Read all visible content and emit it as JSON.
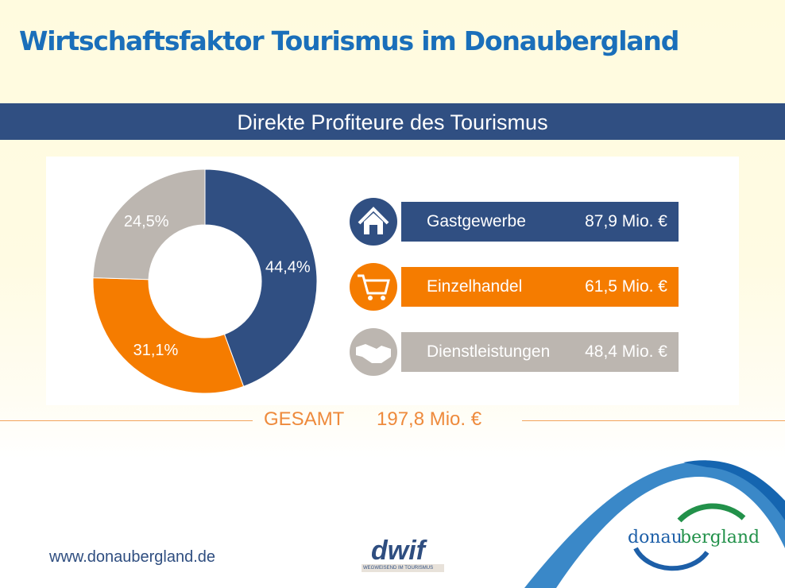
{
  "header": {
    "title": "Wirtschaftsfaktor Tourismus im Donaubergland",
    "subtitle": "Direkte Profiteure des Tourismus"
  },
  "chart_data": {
    "type": "pie",
    "style": "donut",
    "categories": [
      "Gastgewerbe",
      "Einzelhandel",
      "Dienstleistungen"
    ],
    "values": [
      44.4,
      31.1,
      24.5
    ],
    "labels": [
      "44,4%",
      "31,1%",
      "24,5%"
    ],
    "colors": [
      "#304f82",
      "#f57c00",
      "#bcb6b0"
    ]
  },
  "legend": [
    {
      "icon": "house-icon",
      "label": "Gastgewerbe",
      "value": "87,9 Mio. €",
      "color": "#304f82"
    },
    {
      "icon": "shopping-cart-icon",
      "label": "Einzelhandel",
      "value": "61,5 Mio. €",
      "color": "#f57c00"
    },
    {
      "icon": "handshake-icon",
      "label": "Dienstleistungen",
      "value": "48,4 Mio. €",
      "color": "#bcb6b0"
    }
  ],
  "total": {
    "label": "GESAMT",
    "value": "197,8 Mio. €"
  },
  "footer": {
    "url": "www.donaubergland.de",
    "dwif": "dwif",
    "dwif_tag": "WEGWEISEND IM TOURISMUS",
    "logo_a": "donau",
    "logo_b": "bergland"
  }
}
